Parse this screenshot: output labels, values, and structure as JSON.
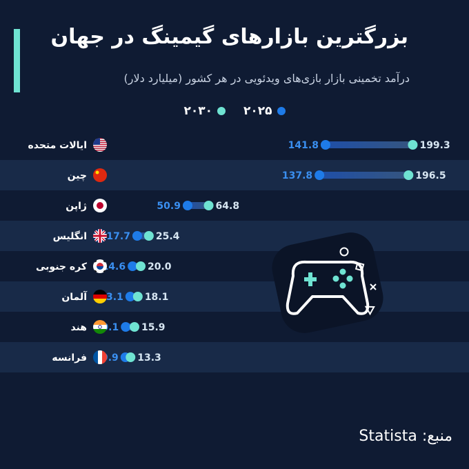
{
  "header": {
    "title": "بزرگترین بازارهای گیمینگ در جهان",
    "subtitle": "درآمد تخمینی بازار بازی‌های ویدئویی در هر کشور (میلیارد دلار)"
  },
  "legend": {
    "items": [
      {
        "label": "۲۰۲۵",
        "color": "#1e7be8"
      },
      {
        "label": "۲۰۳۰",
        "color": "#6fe3d2"
      }
    ]
  },
  "chart_data": {
    "type": "dumbbell",
    "categories": [
      "ایالات متحده",
      "چین",
      "ژاپن",
      "انگلیس",
      "کره جنوبی",
      "آلمان",
      "هند",
      "فرانسه"
    ],
    "flags": [
      "us",
      "cn",
      "jp",
      "gb",
      "kr",
      "de",
      "in",
      "fr"
    ],
    "series": [
      {
        "name": "۲۰۲۵",
        "values": [
          141.8,
          137.8,
          50.9,
          17.7,
          14.6,
          13.1,
          10.1,
          9.9
        ],
        "color": "#1e7be8"
      },
      {
        "name": "۲۰۳۰",
        "values": [
          199.3,
          196.5,
          64.8,
          25.4,
          20.0,
          18.1,
          15.9,
          13.3
        ],
        "color": "#6fe3d2"
      }
    ],
    "value_labels_2025": [
      "141.8",
      "137.8",
      "50.9",
      "17.7",
      "14.6",
      "13.1",
      "10.1",
      "9.9"
    ],
    "value_labels_2030": [
      "199.3",
      "196.5",
      "64.8",
      "25.4",
      "20.0",
      "18.1",
      "15.9",
      "13.3"
    ],
    "xlim": [
      0,
      200
    ],
    "unit": "میلیارد دلار"
  },
  "colors": {
    "background": "#0f1b33",
    "row_stripe": "#182a48",
    "accent": "#6fe3d2",
    "dot_2025": "#1e7be8",
    "dot_2030": "#6fe3d2",
    "label_2025": "#3a8ff0",
    "label_2030": "#d7e6f2"
  },
  "decoration": {
    "icon": "gamepad-icon"
  },
  "footer": {
    "source_label": "منبع:",
    "source_name": "Statista"
  }
}
